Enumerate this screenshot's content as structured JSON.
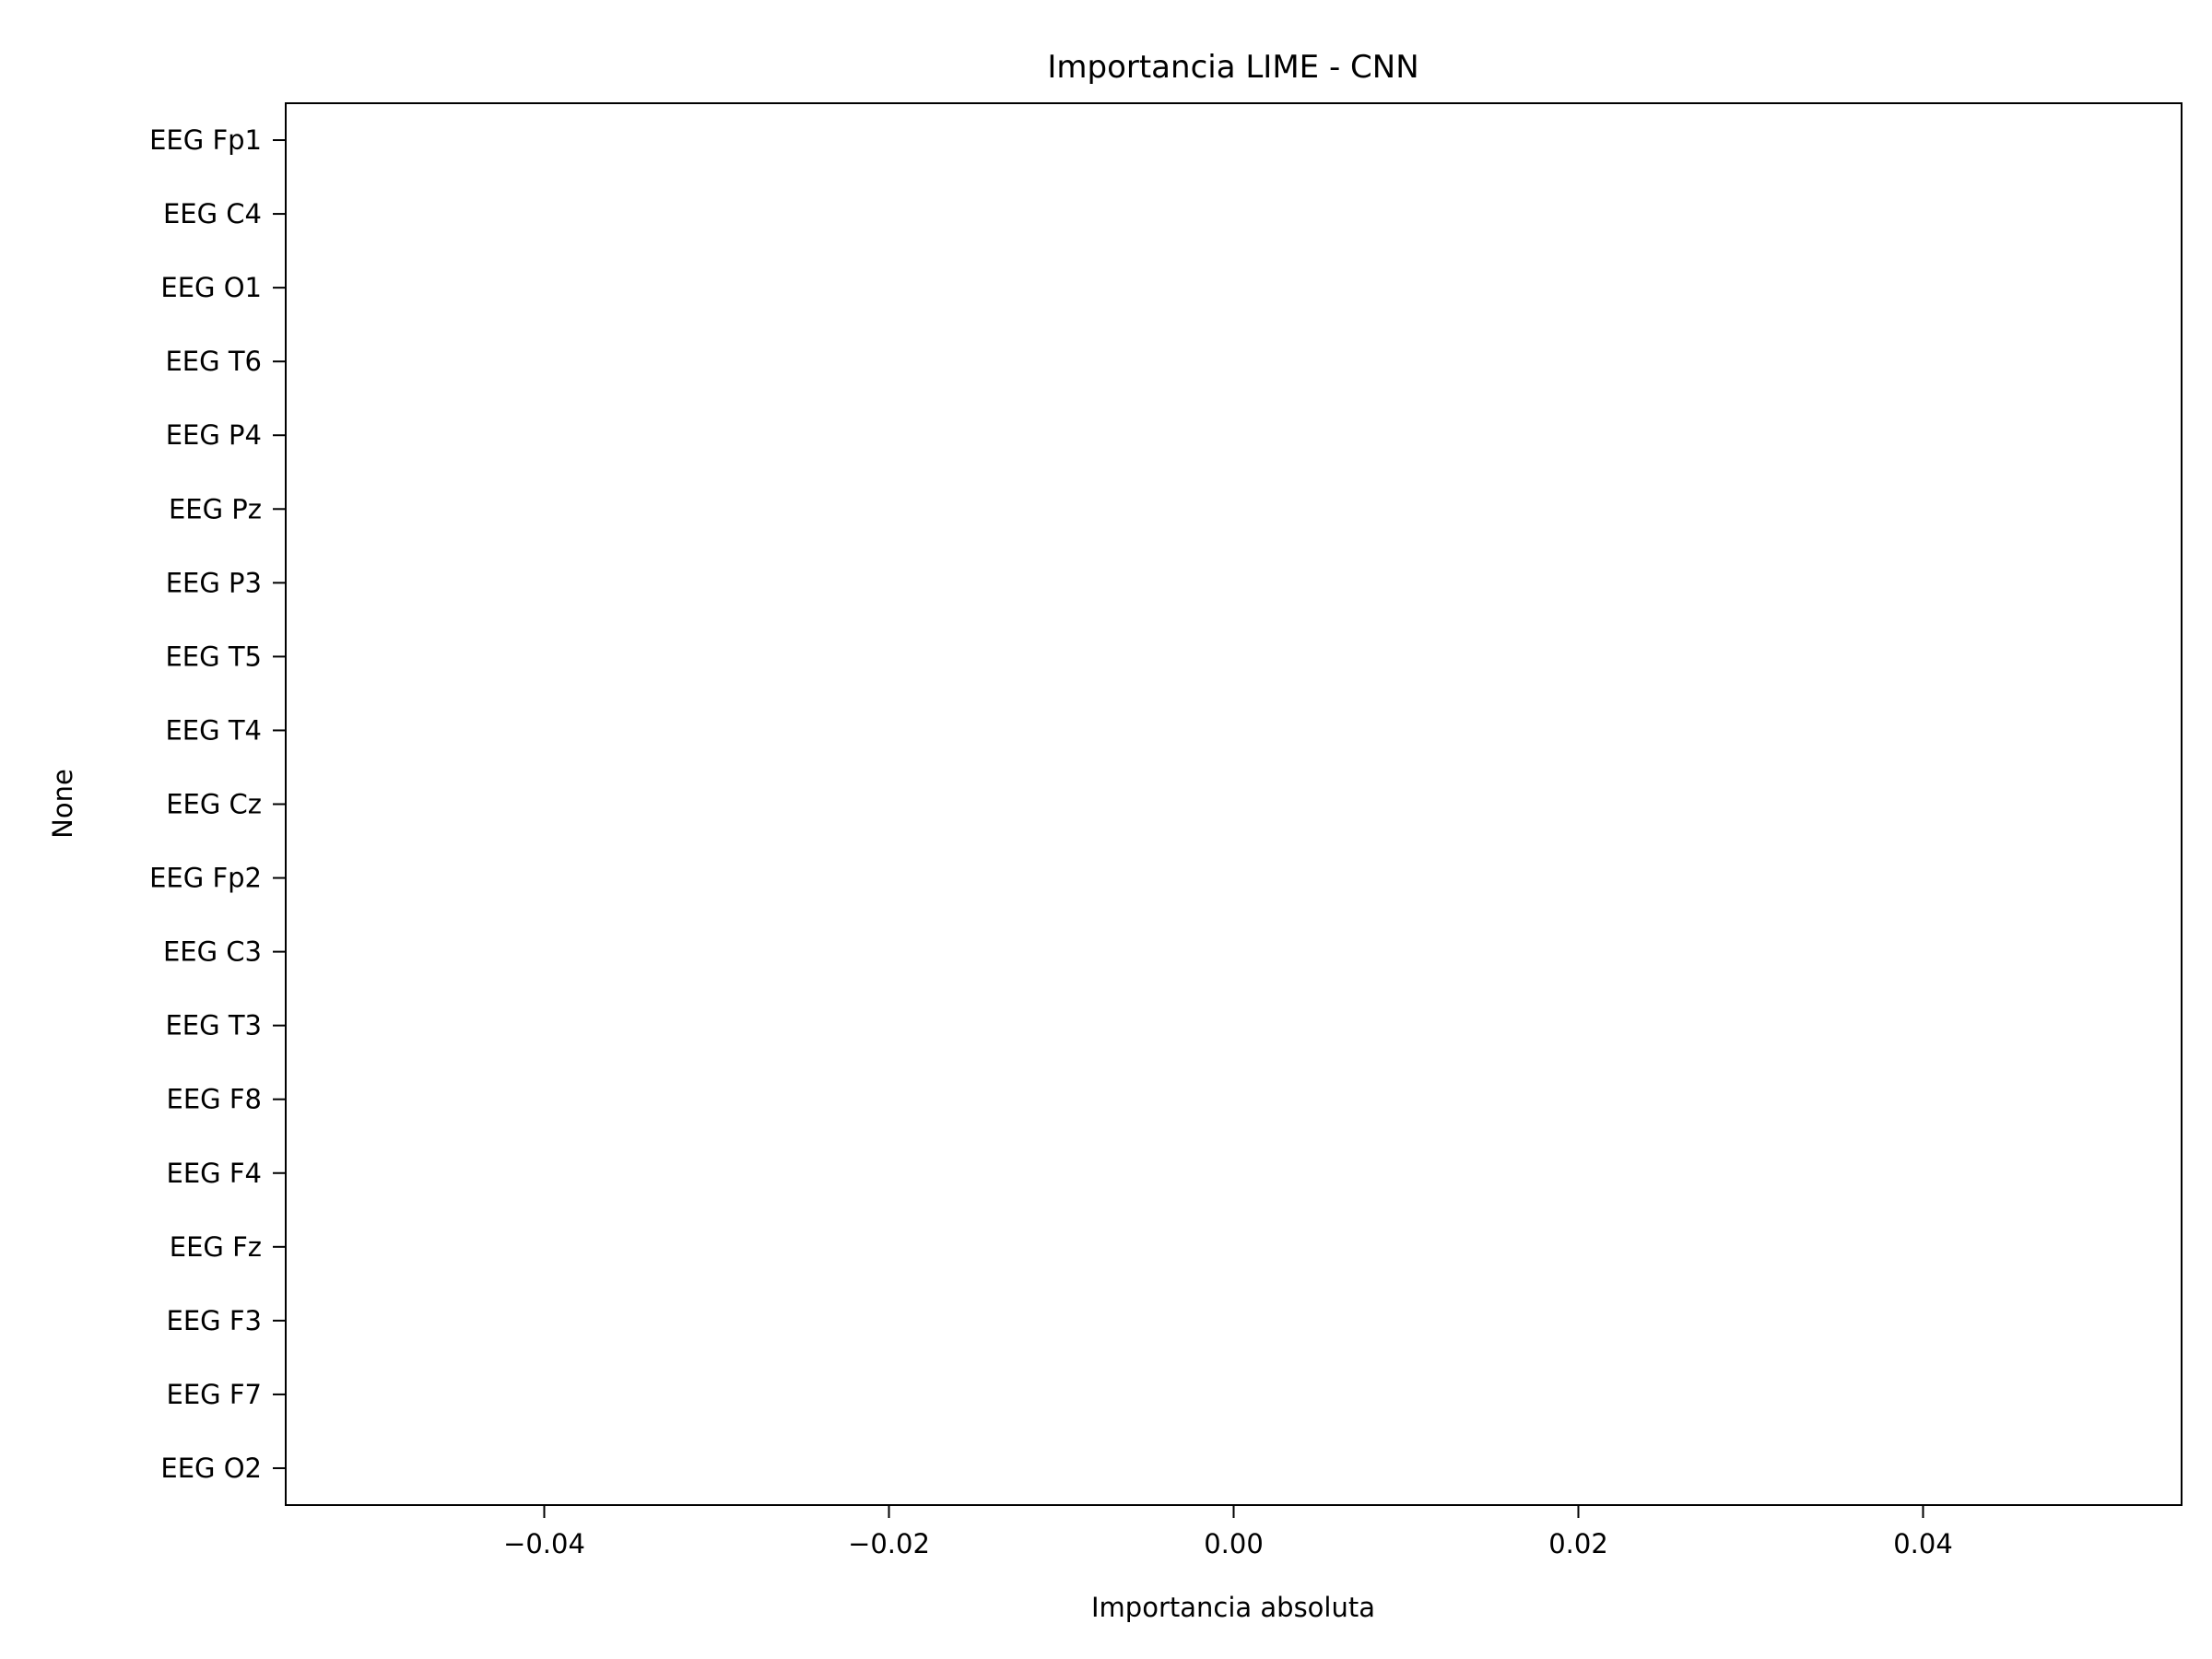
{
  "chart_data": {
    "type": "bar",
    "orientation": "horizontal",
    "title": "Importancia LIME - CNN",
    "xlabel": "Importancia absoluta",
    "ylabel": "None",
    "categories": [
      "EEG Fp1",
      "EEG C4",
      "EEG O1",
      "EEG T6",
      "EEG P4",
      "EEG Pz",
      "EEG P3",
      "EEG T5",
      "EEG T4",
      "EEG Cz",
      "EEG Fp2",
      "EEG C3",
      "EEG T3",
      "EEG F8",
      "EEG F4",
      "EEG Fz",
      "EEG F3",
      "EEG F7",
      "EEG O2"
    ],
    "values": [
      0,
      0,
      0,
      0,
      0,
      0,
      0,
      0,
      0,
      0,
      0,
      0,
      0,
      0,
      0,
      0,
      0,
      0,
      0
    ],
    "xlim": [
      -0.055,
      0.055
    ],
    "xticks": [
      -0.04,
      -0.02,
      0.0,
      0.02,
      0.04
    ],
    "xtick_labels": [
      "−0.04",
      "−0.02",
      "0.00",
      "0.02",
      "0.04"
    ],
    "grid": false,
    "legend": "none",
    "colors": {
      "axis": "#000000",
      "bar": "#1f77b4",
      "background": "#ffffff"
    }
  }
}
